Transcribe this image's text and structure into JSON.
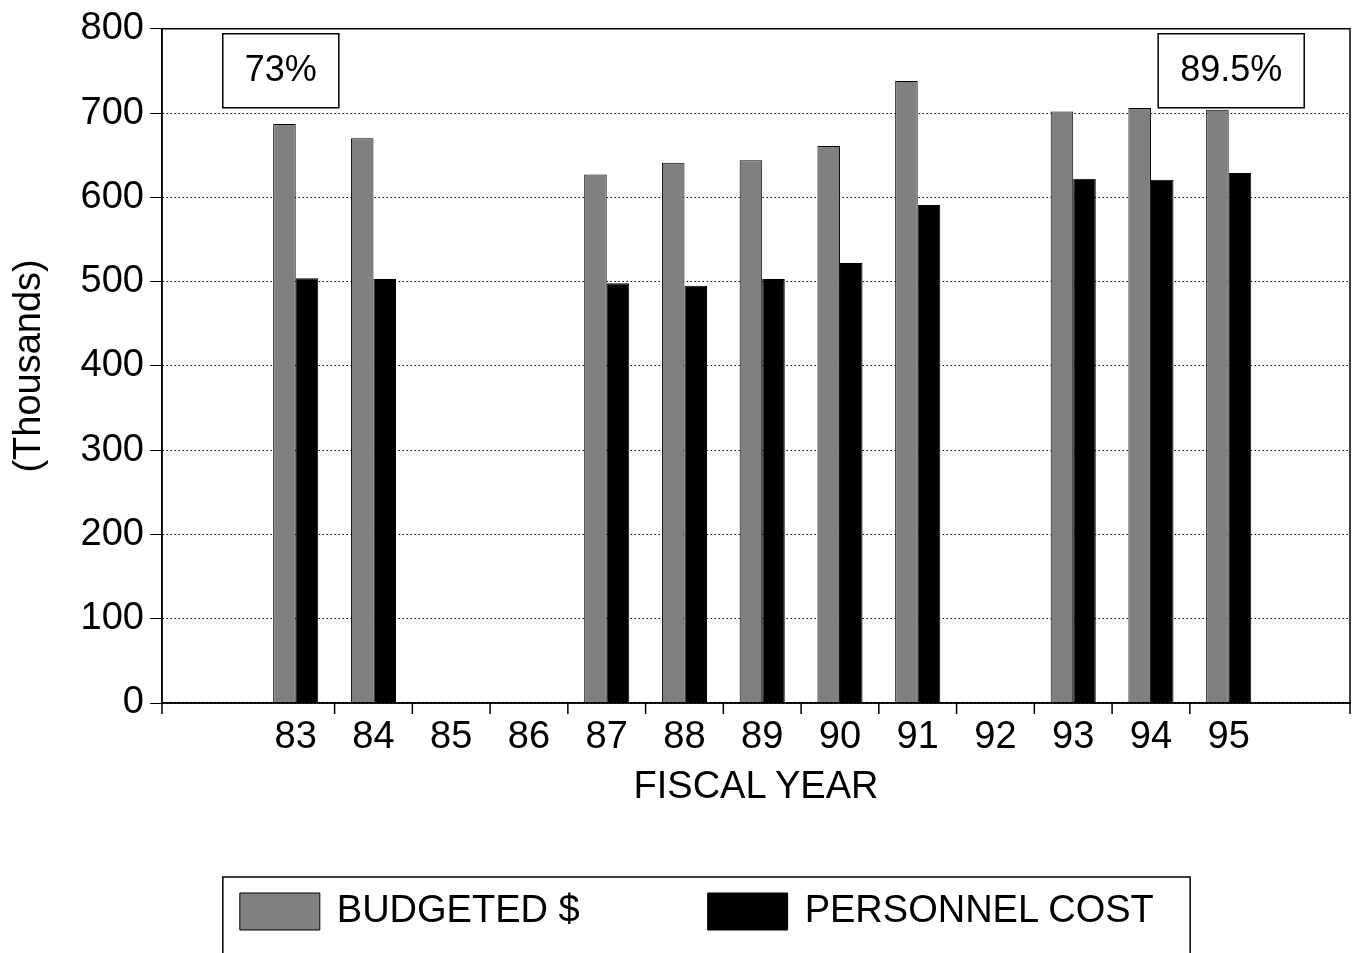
{
  "chart_data": {
    "type": "bar",
    "xlabel": "FISCAL YEAR",
    "ylabel": "(Thousands)",
    "categories": [
      "83",
      "84",
      "85",
      "86",
      "87",
      "88",
      "89",
      "90",
      "91",
      "92",
      "93",
      "94",
      "95"
    ],
    "series": [
      {
        "name": "BUDGETED $",
        "color": "#808080",
        "values": [
          687,
          670,
          null,
          null,
          627,
          641,
          644,
          661,
          738,
          null,
          702,
          706,
          704
        ]
      },
      {
        "name": "PERSONNEL COST",
        "color": "#000000",
        "values": [
          504,
          503,
          null,
          null,
          498,
          495,
          503,
          522,
          591,
          null,
          622,
          621,
          629
        ]
      }
    ],
    "ylim": [
      0,
      800
    ],
    "yticks": [
      0,
      100,
      200,
      300,
      400,
      500,
      600,
      700,
      800
    ],
    "grid": "y",
    "legend": "bottom",
    "annotations": [
      "73%",
      "89.5%"
    ]
  }
}
